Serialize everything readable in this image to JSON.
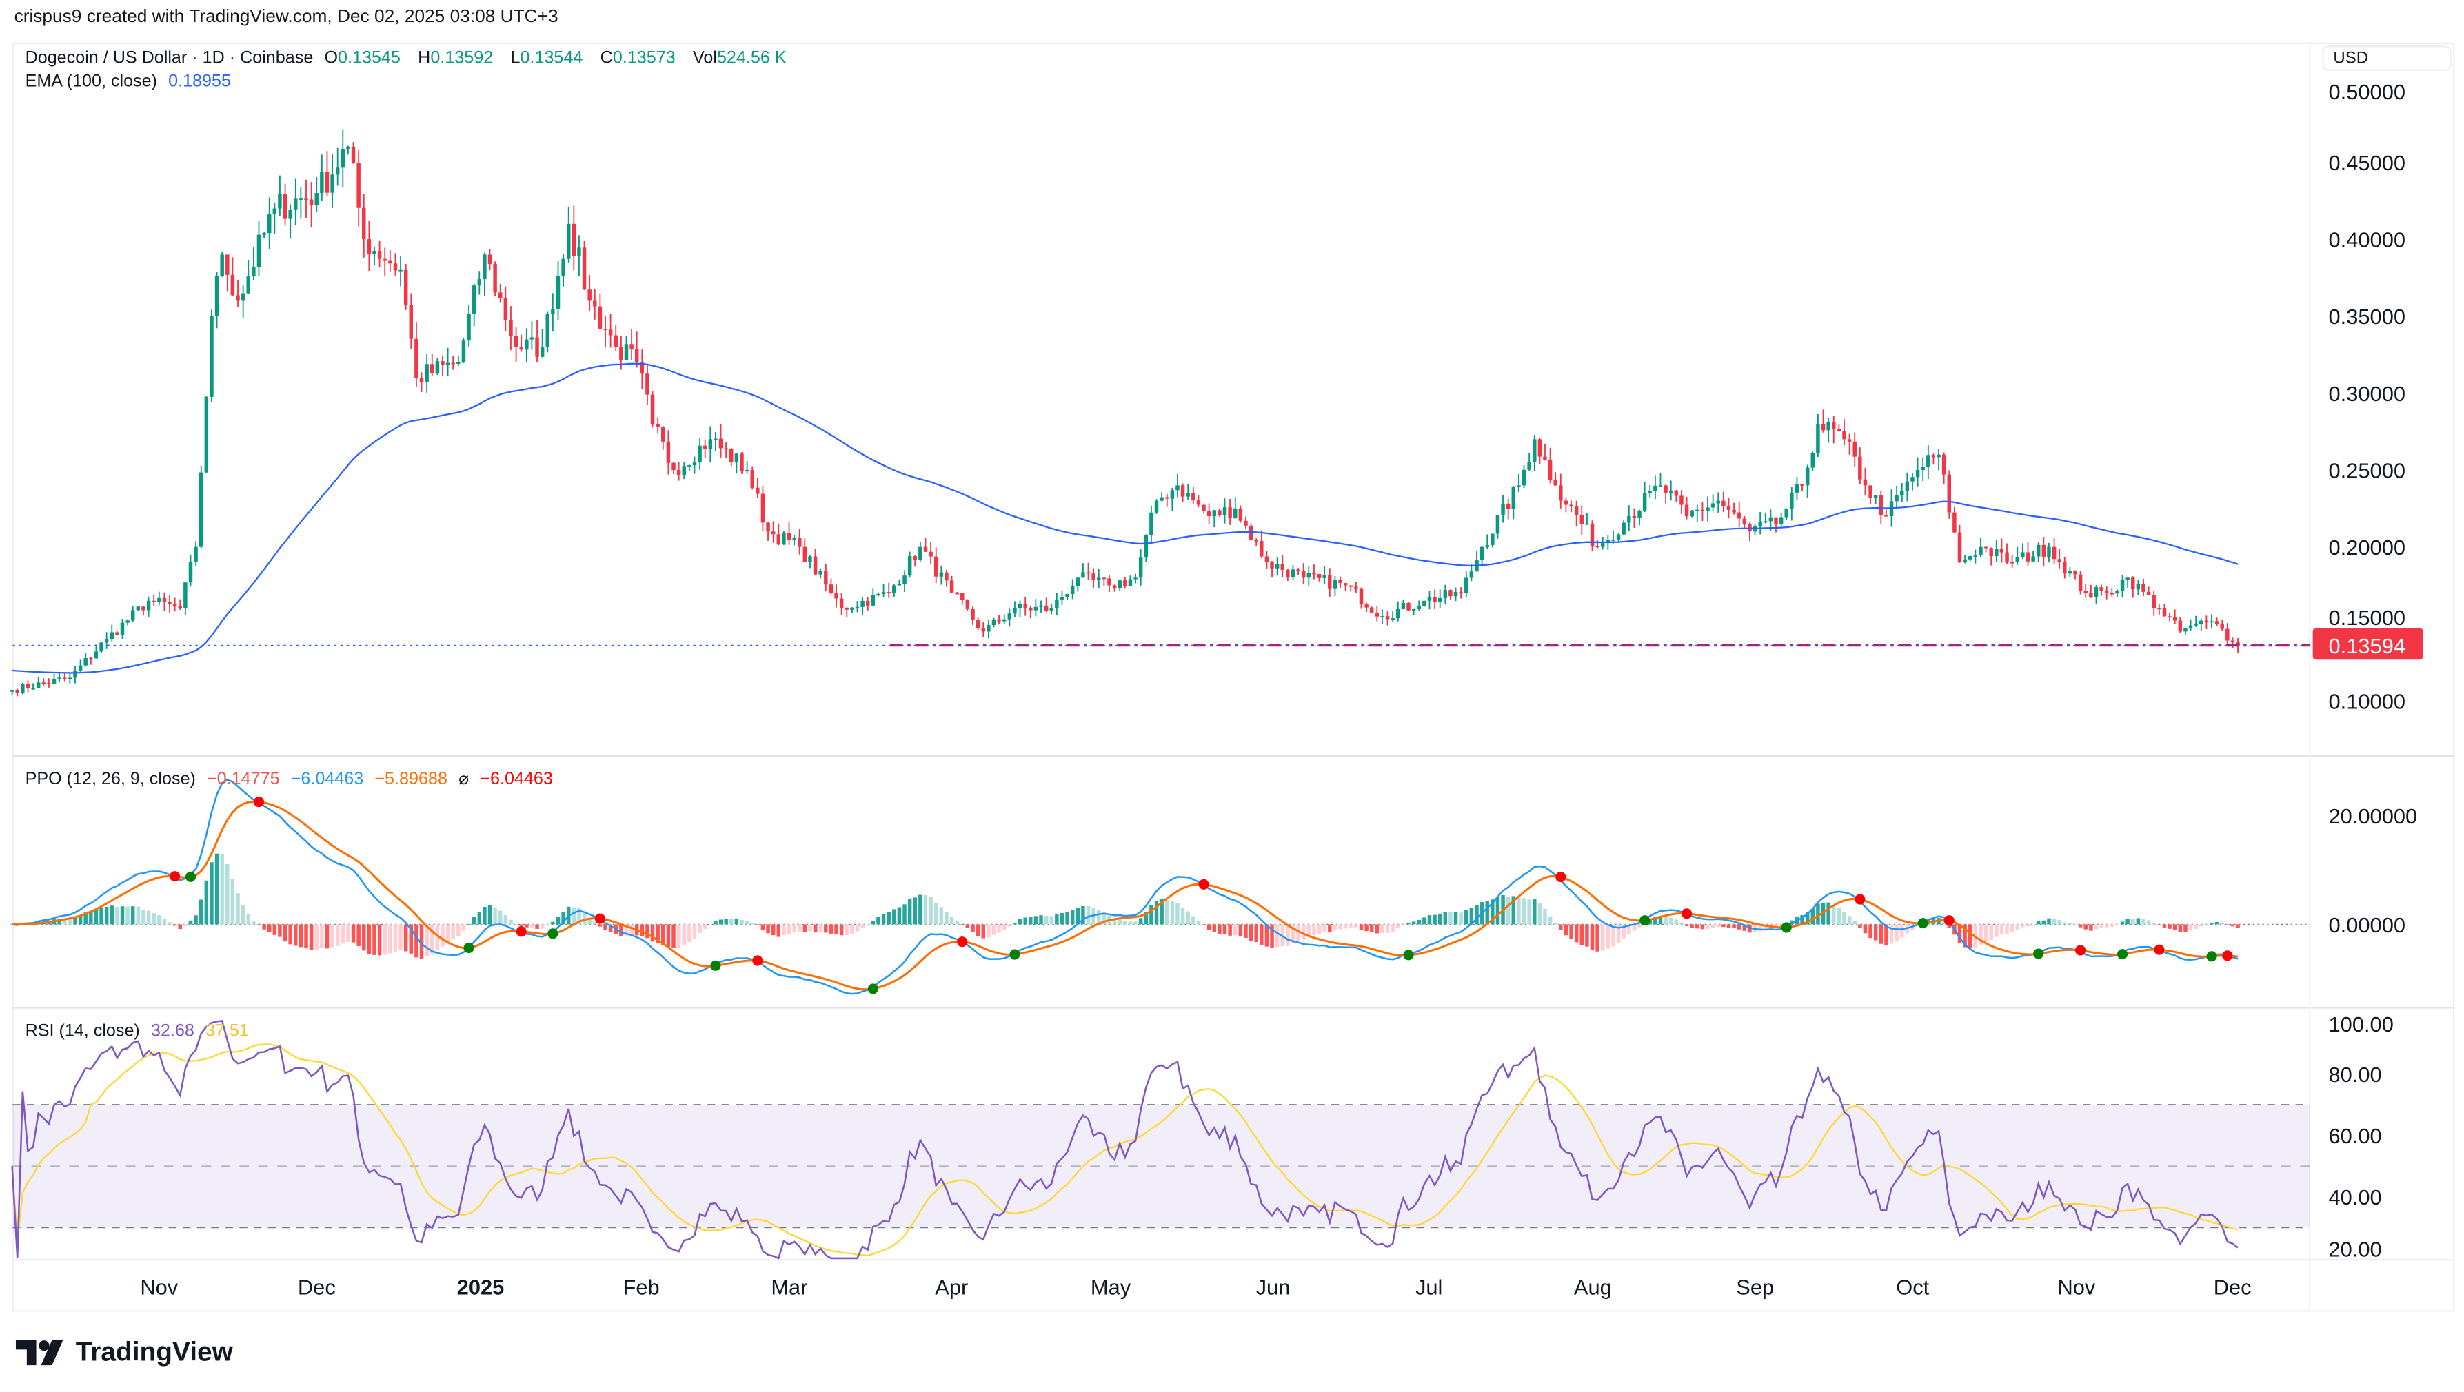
{
  "credit": "crispus9 created with TradingView.com, Dec 02, 2025 03:08 UTC+3",
  "symbol": {
    "name": "Dogecoin / US Dollar · 1D · Coinbase",
    "o_label": "O",
    "o": "0.13545",
    "h_label": "H",
    "h": "0.13592",
    "l_label": "L",
    "l": "0.13544",
    "c_label": "C",
    "c": "0.13573",
    "vol_label": "Vol",
    "vol": "524.56 K"
  },
  "ema": {
    "label": "EMA (100, close)",
    "value": "0.18955",
    "color": "#2962ff"
  },
  "ppo": {
    "label": "PPO (12, 26, 9, close)",
    "hist": "−0.14775",
    "ppo": "−6.04463",
    "signal": "−5.89688",
    "cross_symbol": "⌀",
    "cross": "−6.04463"
  },
  "rsi": {
    "label": "RSI (14, close)",
    "value": "32.68",
    "ma": "37.51"
  },
  "currency": "USD",
  "last_price": "0.13594",
  "brand": "TradingView",
  "colors": {
    "up": "#089981",
    "down": "#f23645",
    "ema": "#2962ff",
    "ppo": "#2196f3",
    "signal": "#ff6d00",
    "rsi": "#7e57c2",
    "rsi_ma": "#fdd835"
  },
  "chart_data": {
    "type": "candlestick",
    "price_axis": {
      "ticks": [
        "0.50000",
        "0.45000",
        "0.40000",
        "0.35000",
        "0.30000",
        "0.25000",
        "0.20000",
        "0.15000",
        "0.10000"
      ],
      "range": [
        0.075,
        0.52
      ]
    },
    "ppo_axis": {
      "ticks": [
        "20.00000",
        "0.00000"
      ]
    },
    "rsi_axis": {
      "ticks": [
        "100.00",
        "80.00",
        "60.00",
        "40.00",
        "20.00"
      ],
      "bands": [
        30,
        50,
        70
      ]
    },
    "time_axis": [
      "Nov",
      "Dec",
      "2025",
      "Feb",
      "Mar",
      "Apr",
      "May",
      "Jun",
      "Jul",
      "Aug",
      "Sep",
      "Oct",
      "Nov",
      "Dec"
    ],
    "support_level": 0.136,
    "close_series": [
      [
        "2024-10-04",
        0.107
      ],
      [
        "2024-10-15",
        0.115
      ],
      [
        "2024-10-22",
        0.14
      ],
      [
        "2024-10-30",
        0.165
      ],
      [
        "2024-11-05",
        0.16
      ],
      [
        "2024-11-08",
        0.2
      ],
      [
        "2024-11-11",
        0.35
      ],
      [
        "2024-11-13",
        0.39
      ],
      [
        "2024-11-16",
        0.36
      ],
      [
        "2024-11-23",
        0.42
      ],
      [
        "2024-12-01",
        0.43
      ],
      [
        "2024-12-07",
        0.46
      ],
      [
        "2024-12-10",
        0.4
      ],
      [
        "2024-12-17",
        0.38
      ],
      [
        "2024-12-20",
        0.31
      ],
      [
        "2024-12-28",
        0.32
      ],
      [
        "2025-01-02",
        0.39
      ],
      [
        "2025-01-08",
        0.33
      ],
      [
        "2025-01-13",
        0.33
      ],
      [
        "2025-01-18",
        0.41
      ],
      [
        "2025-01-22",
        0.36
      ],
      [
        "2025-01-27",
        0.33
      ],
      [
        "2025-01-31",
        0.32
      ],
      [
        "2025-02-03",
        0.28
      ],
      [
        "2025-02-07",
        0.25
      ],
      [
        "2025-02-14",
        0.27
      ],
      [
        "2025-02-21",
        0.25
      ],
      [
        "2025-02-25",
        0.21
      ],
      [
        "2025-03-03",
        0.2
      ],
      [
        "2025-03-09",
        0.17
      ],
      [
        "2025-03-11",
        0.16
      ],
      [
        "2025-03-20",
        0.17
      ],
      [
        "2025-03-26",
        0.2
      ],
      [
        "2025-04-01",
        0.17
      ],
      [
        "2025-04-07",
        0.145
      ],
      [
        "2025-04-13",
        0.16
      ],
      [
        "2025-04-20",
        0.16
      ],
      [
        "2025-04-25",
        0.18
      ],
      [
        "2025-05-01",
        0.175
      ],
      [
        "2025-05-06",
        0.18
      ],
      [
        "2025-05-10",
        0.23
      ],
      [
        "2025-05-14",
        0.24
      ],
      [
        "2025-05-20",
        0.22
      ],
      [
        "2025-05-25",
        0.225
      ],
      [
        "2025-05-31",
        0.19
      ],
      [
        "2025-06-07",
        0.18
      ],
      [
        "2025-06-15",
        0.175
      ],
      [
        "2025-06-22",
        0.155
      ],
      [
        "2025-06-30",
        0.165
      ],
      [
        "2025-07-07",
        0.17
      ],
      [
        "2025-07-11",
        0.2
      ],
      [
        "2025-07-18",
        0.24
      ],
      [
        "2025-07-21",
        0.27
      ],
      [
        "2025-07-25",
        0.24
      ],
      [
        "2025-08-02",
        0.2
      ],
      [
        "2025-08-08",
        0.22
      ],
      [
        "2025-08-14",
        0.24
      ],
      [
        "2025-08-19",
        0.22
      ],
      [
        "2025-08-25",
        0.23
      ],
      [
        "2025-08-31",
        0.21
      ],
      [
        "2025-09-05",
        0.215
      ],
      [
        "2025-09-10",
        0.24
      ],
      [
        "2025-09-13",
        0.28
      ],
      [
        "2025-09-18",
        0.27
      ],
      [
        "2025-09-22",
        0.24
      ],
      [
        "2025-09-26",
        0.22
      ],
      [
        "2025-10-02",
        0.25
      ],
      [
        "2025-10-06",
        0.26
      ],
      [
        "2025-10-10",
        0.19
      ],
      [
        "2025-10-14",
        0.2
      ],
      [
        "2025-10-20",
        0.19
      ],
      [
        "2025-10-27",
        0.2
      ],
      [
        "2025-11-03",
        0.17
      ],
      [
        "2025-11-07",
        0.17
      ],
      [
        "2025-11-11",
        0.18
      ],
      [
        "2025-11-17",
        0.16
      ],
      [
        "2025-11-21",
        0.145
      ],
      [
        "2025-11-24",
        0.15
      ],
      [
        "2025-11-28",
        0.15
      ],
      [
        "2025-12-01",
        0.138
      ],
      [
        "2025-12-02",
        0.1357
      ]
    ]
  }
}
